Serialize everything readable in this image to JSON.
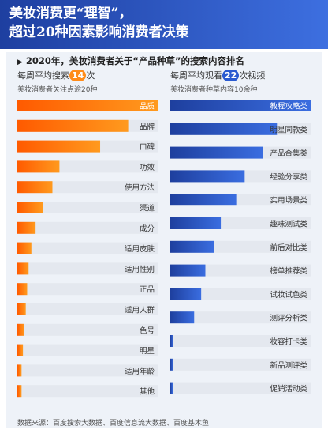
{
  "header": {
    "line1": "美妆消费更“理智”，",
    "line2": "超过20种因素影响消费者决策"
  },
  "subtitle": "2020年，美妆消费者关于“产品种草”的搜索内容排名",
  "source": "数据来源：百度搜索大数据、百度信息流大数据、百度基木鱼",
  "colors": {
    "header": "#2447b0",
    "left_bar": "#ff7a00",
    "right_bar": "#1f4fb8",
    "track": "#e4e8ef",
    "left_badge": "#ff8c1a",
    "right_badge": "#2a5ad0"
  },
  "chart_data": [
    {
      "type": "bar",
      "orientation": "horizontal",
      "head": {
        "prefix": "每周平均搜索",
        "count": "14",
        "suffix": "次"
      },
      "note": "美妆消费者关注点逾20种",
      "categories": [
        "品质",
        "品牌",
        "口碑",
        "功效",
        "使用方法",
        "渠道",
        "成分",
        "适用皮肤",
        "适用性别",
        "正品",
        "适用人群",
        "色号",
        "明星",
        "适用年龄",
        "其他"
      ],
      "values": [
        100,
        79,
        59,
        30,
        25,
        18,
        13,
        10,
        8,
        7,
        6,
        5,
        4,
        3,
        3
      ],
      "max": 100,
      "grid": false
    },
    {
      "type": "bar",
      "orientation": "horizontal",
      "head": {
        "prefix": "每周平均观看",
        "count": "22",
        "suffix": "次视频"
      },
      "note": "美妆消费者种草内容10余种",
      "categories": [
        "教程攻略类",
        "明星同款类",
        "产品合集类",
        "经验分享类",
        "实用场景类",
        "趣味测试类",
        "前后对比类",
        "榜单推荐类",
        "试妆试色类",
        "测评分析类",
        "妆容打卡类",
        "新品测评类",
        "促销活动类"
      ],
      "values": [
        100,
        76,
        66,
        53,
        47,
        36,
        31,
        25,
        22,
        17,
        2,
        2,
        1
      ],
      "max": 100,
      "grid": false
    }
  ]
}
